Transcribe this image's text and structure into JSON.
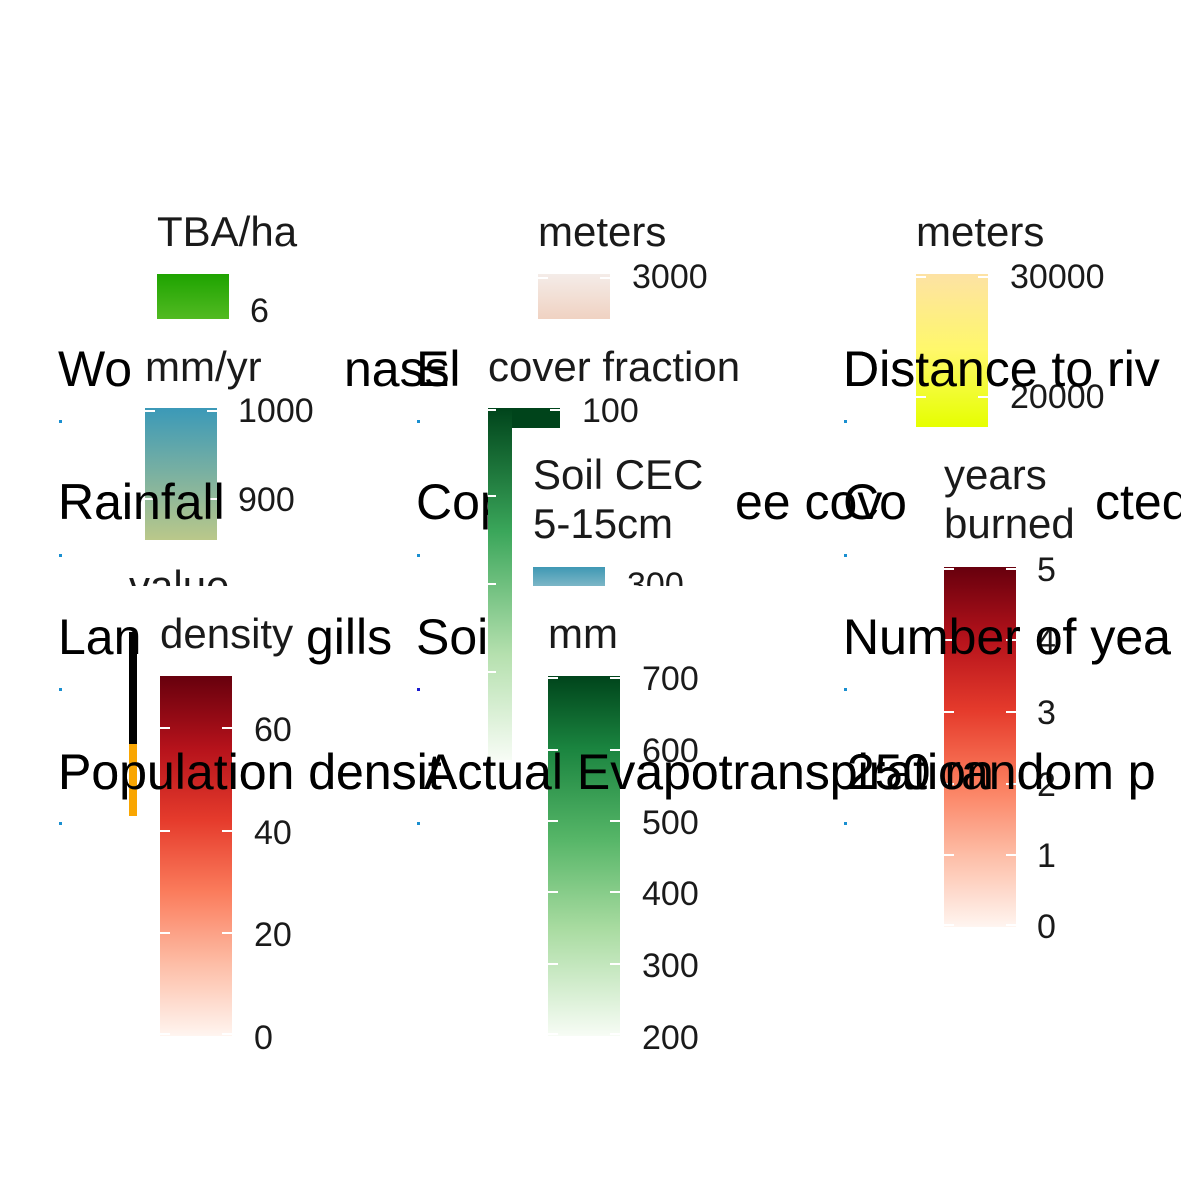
{
  "chart_data": {
    "type": "heatmap",
    "panels": [
      {
        "title": "Woody biomass",
        "shown_text": "Wo            nass",
        "legend_title": "TBA/ha",
        "ticks": [
          6
        ],
        "colors": [
          "#22a800",
          "#4cb81c"
        ]
      },
      {
        "title": "Elevation",
        "shown_text": "El",
        "legend_title": "meters",
        "ticks": [
          3000
        ],
        "colors": [
          "#f2e6e0",
          "#f0d0c0"
        ]
      },
      {
        "title": "Distance to river",
        "shown_text": "Distance to riv",
        "legend_title": "meters",
        "ticks": [
          30000,
          20000
        ],
        "colors": [
          "#fde3a0",
          "#e8ff00"
        ]
      },
      {
        "title": "Rainfall",
        "shown_text": "Rainfall",
        "legend_title": "mm/yr",
        "ticks": [
          1000,
          900
        ],
        "colors": [
          "#3e9ab8",
          "#b9c78b"
        ]
      },
      {
        "title": "Copernicus tree cover",
        "shown_text": "Cop              ee cov",
        "legend_title": "cover fraction",
        "ticks": [
          100
        ],
        "colors": [
          "#00441b",
          "#f7fcf5"
        ]
      },
      {
        "title": "Soil CEC 5-15cm",
        "shown_text": "",
        "legend_title": "Soil CEC\n5-15cm",
        "ticks": [
          300
        ],
        "colors": [
          "#3f98b4",
          "#8fbecb"
        ]
      },
      {
        "title": "Core protected area",
        "shown_text": "Co               cted",
        "legend_title": "",
        "ticks": [],
        "colors": []
      },
      {
        "title": "Number of years burned",
        "shown_text": "Number of yea",
        "legend_title": "years\nburned",
        "ticks": [
          5,
          4,
          3,
          2,
          1,
          0
        ],
        "colors": [
          "#67000d",
          "#fff5f0"
        ]
      },
      {
        "title": "Land cover",
        "shown_text": "Lan",
        "legend_title": "value",
        "ticks": [],
        "colors": [
          "#000000",
          "#f9a602"
        ]
      },
      {
        "title": "Population density",
        "shown_text": "Population densit",
        "legend_title": "density",
        "ticks": [
          60,
          40,
          20,
          0
        ],
        "colors": [
          "#67000d",
          "#fff5f0"
        ]
      },
      {
        "title": "Soil",
        "shown_text": "gills  Soil",
        "legend_title": "",
        "ticks": [],
        "colors": []
      },
      {
        "title": "Actual Evapotranspiration",
        "shown_text": "Actual Evapotranspiration",
        "legend_title": "mm",
        "ticks": [
          700,
          600,
          500,
          400,
          300,
          200
        ],
        "colors": [
          "#00441b",
          "#f7fcf5"
        ]
      },
      {
        "title": "250 random points",
        "shown_text": "250 random p",
        "legend_title": "",
        "ticks": [],
        "colors": []
      }
    ]
  },
  "titles": {
    "woody": "Wo",
    "woody_tail": "nass",
    "elev": "El",
    "dist": "Distance to riv",
    "rain": "Rainfall",
    "cop": "Cop",
    "cop_tail": "ee cov",
    "core": "Co",
    "core_tail": "cted",
    "land": "Lan",
    "land_mid": "gills",
    "soil": "Soil",
    "years": "Number of yea",
    "pop": "Population densit",
    "aet": "Actual Evapotranspiration",
    "rand": "250 random p",
    "soil_cec_overlap": "Soil Cec"
  },
  "legends": {
    "tba": {
      "title": "TBA/ha",
      "ticks": [
        "6"
      ]
    },
    "elev": {
      "title": "meters",
      "ticks": [
        "3000"
      ]
    },
    "dist": {
      "title": "meters",
      "ticks": [
        "30000",
        "20000"
      ]
    },
    "rain": {
      "title": "mm/yr",
      "ticks": [
        "1000",
        "900"
      ]
    },
    "cover": {
      "title": "cover fraction",
      "ticks": [
        "100"
      ]
    },
    "cec": {
      "title1": "Soil CEC",
      "title2": "5-15cm",
      "ticks": [
        "300"
      ]
    },
    "years": {
      "title1": "years",
      "title2": "burned",
      "ticks": [
        "5",
        "4",
        "3",
        "2",
        "1",
        "0"
      ]
    },
    "value": {
      "title": "value"
    },
    "density": {
      "title": "density",
      "ticks": [
        "60",
        "40",
        "20",
        "0"
      ]
    },
    "mm": {
      "title": "mm",
      "ticks": [
        "700",
        "600",
        "500",
        "400",
        "300",
        "200"
      ]
    }
  }
}
